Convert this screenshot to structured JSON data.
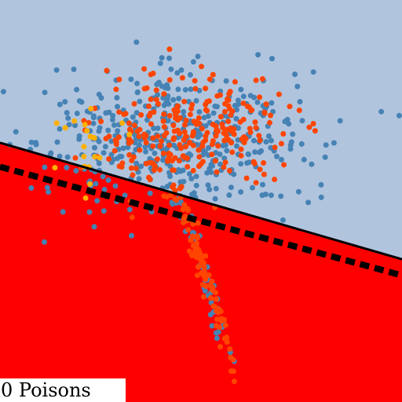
{
  "chart_data": {
    "type": "scatter",
    "xlim": [
      0,
      1
    ],
    "ylim": [
      0,
      1
    ],
    "grid": false,
    "legend": "none",
    "region_colors": {
      "above_boundary": "#b0c4de",
      "below_boundary": "#ff0000"
    },
    "decision_boundary": {
      "x": [
        0,
        1
      ],
      "y": [
        0.645,
        0.355
      ]
    },
    "reference_boundary": {
      "x": [
        0,
        1
      ],
      "y": [
        0.585,
        0.315
      ],
      "style": "dashed"
    },
    "series": [
      {
        "color": "#4682b4",
        "clusters": [
          {
            "center": [
              0.45,
              0.66
            ],
            "spread": [
              0.17,
              0.085
            ],
            "count": 430
          },
          {
            "center": [
              0.48,
              0.4
            ],
            "spread": [
              0.04,
              0.14
            ],
            "count": 60,
            "elongated": true
          }
        ]
      },
      {
        "color": "#ff4500",
        "clusters": [
          {
            "center": [
              0.47,
              0.67
            ],
            "spread": [
              0.12,
              0.07
            ],
            "count": 260
          },
          {
            "center": [
              0.49,
              0.38
            ],
            "spread": [
              0.04,
              0.15
            ],
            "count": 110,
            "elongated": true
          }
        ]
      },
      {
        "color": "#ffb000",
        "clusters": [
          {
            "center": [
              0.23,
              0.64
            ],
            "spread": [
              0.05,
              0.04
            ],
            "count": 20
          }
        ]
      }
    ]
  },
  "poison_counter": "0 Poisons"
}
